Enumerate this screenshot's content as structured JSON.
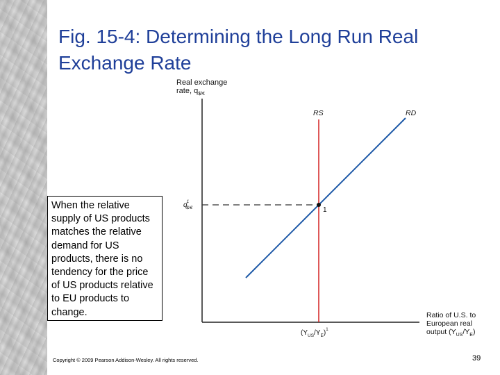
{
  "title": "Fig. 15-4:  Determining the Long Run Real Exchange Rate",
  "callout_text": "When the relative supply of US products matches the relative demand for US products, there is no tendency for the price of US products relative to EU products to change.",
  "footer": "Copyright © 2009 Pearson Addison-Wesley. All rights reserved.",
  "page_number": "39",
  "diagram": {
    "y_axis_label_line1": "Real exchange",
    "y_axis_label_line2": "rate, q",
    "y_axis_label_sub": "$/€",
    "x_axis_label_line1": "Ratio of U.S. to",
    "x_axis_label_line2": "European real",
    "x_axis_label_line3": "output (Y",
    "x_axis_label_line3_sub1": "US",
    "x_axis_label_line3_mid": "/Y",
    "x_axis_label_line3_sub2": "E",
    "x_axis_label_line3_end": ")",
    "rs_label": "RS",
    "rd_label": "RD",
    "point_label": "1",
    "q_tick": "q",
    "q_tick_sup": "1",
    "q_tick_sub": "$/€",
    "x_tick_open": "(Y",
    "x_tick_sub1": "US",
    "x_tick_mid": "/Y",
    "x_tick_sub2": "E",
    "x_tick_close": ")",
    "x_tick_sup": "1",
    "rs_color": "#d42020",
    "rd_color": "#1f5aa8"
  }
}
